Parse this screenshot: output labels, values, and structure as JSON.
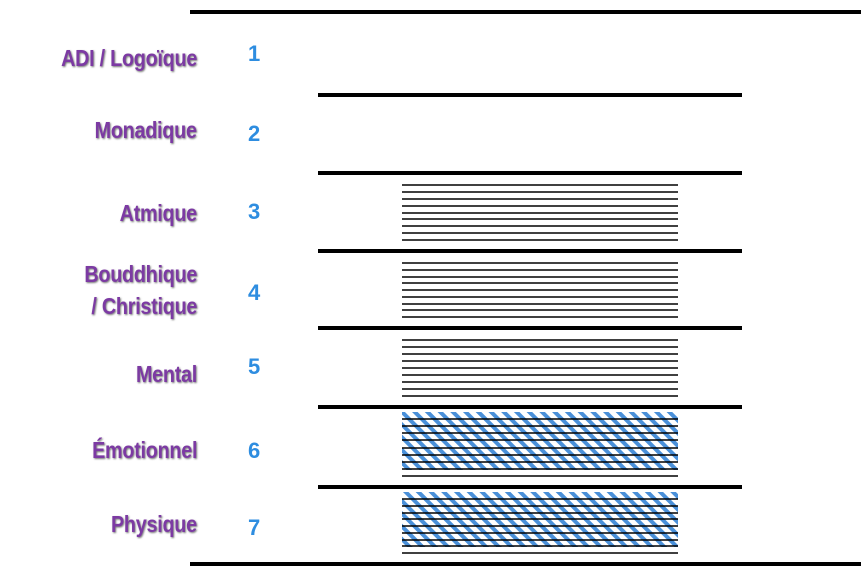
{
  "colors": {
    "label": "#7c3aa3",
    "number": "#2e8de0",
    "line": "#000000",
    "hatch": "#4a90d9"
  },
  "planes": [
    {
      "label_lines": [
        "ADI / Logoïque"
      ],
      "number": "1",
      "fine_lines": false,
      "hatched": false
    },
    {
      "label_lines": [
        "Monadique"
      ],
      "number": "2",
      "fine_lines": false,
      "hatched": false
    },
    {
      "label_lines": [
        "Atmique"
      ],
      "number": "3",
      "fine_lines": true,
      "hatched": false
    },
    {
      "label_lines": [
        "Bouddhique",
        "/ Christique"
      ],
      "number": "4",
      "fine_lines": true,
      "hatched": false
    },
    {
      "label_lines": [
        "Mental"
      ],
      "number": "5",
      "fine_lines": true,
      "hatched": false
    },
    {
      "label_lines": [
        "Émotionnel"
      ],
      "number": "6",
      "fine_lines": true,
      "hatched": true
    },
    {
      "label_lines": [
        "Physique"
      ],
      "number": "7",
      "fine_lines": true,
      "hatched": true
    }
  ]
}
